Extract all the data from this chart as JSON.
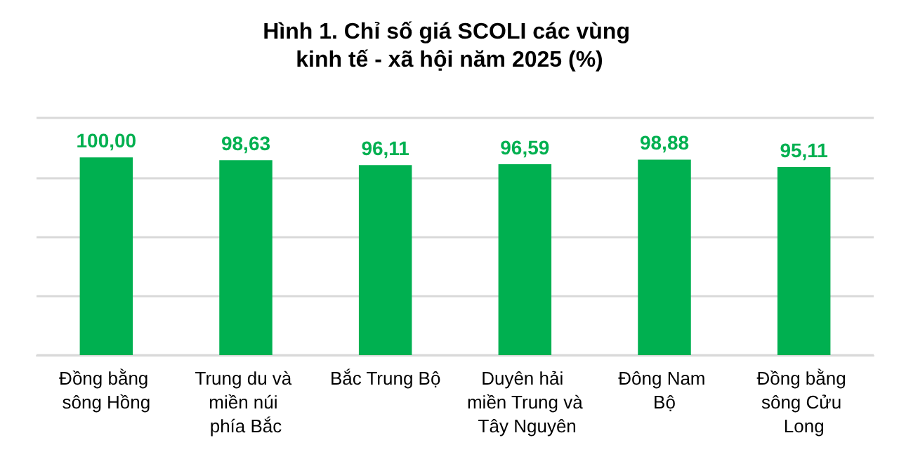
{
  "chart_data": {
    "type": "bar",
    "title": "Hình 1. Chỉ số giá SCOLI các vùng kinh tế - xã hội năm 2025 (%)",
    "categories": [
      "Đồng bằng sông Hồng",
      "Trung du và miền núi phía Bắc",
      "Bắc Trung Bộ",
      "Duyên hải miền Trung và Tây Nguyên",
      "Đông Nam Bộ",
      "Đồng bằng sông Cửu Long"
    ],
    "values": [
      100.0,
      98.63,
      96.11,
      96.59,
      98.88,
      95.11
    ],
    "value_labels": [
      "100,00",
      "98,63",
      "96,11",
      "96,59",
      "98,88",
      "95,11"
    ],
    "color": "#00b050",
    "tick_labels": "x",
    "grid": "y"
  }
}
